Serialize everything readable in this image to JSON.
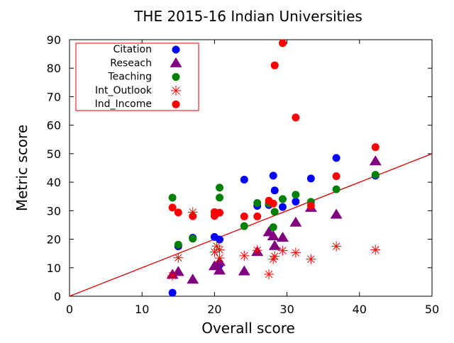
{
  "chart_data": {
    "type": "scatter",
    "title": "THE 2015-16 Indian Universities",
    "xlabel": "Overall score",
    "ylabel": "Metric score",
    "xlim": [
      0,
      50
    ],
    "ylim": [
      0,
      90
    ],
    "xticks": [
      0,
      10,
      20,
      30,
      40,
      50
    ],
    "yticks": [
      0,
      10,
      20,
      30,
      40,
      50,
      60,
      70,
      80,
      90
    ],
    "grid": false,
    "legend_position": "top-left",
    "series": [
      {
        "name": "Citation",
        "marker": "circle",
        "color": "#0000ff",
        "points": [
          [
            14.2,
            1.2
          ],
          [
            15.0,
            17.5
          ],
          [
            17.0,
            20.5
          ],
          [
            20.0,
            20.8
          ],
          [
            20.7,
            19.9
          ],
          [
            20.7,
            11.0
          ],
          [
            24.1,
            40.9
          ],
          [
            25.9,
            31.7
          ],
          [
            27.5,
            32.0
          ],
          [
            28.1,
            42.3
          ],
          [
            28.3,
            37.1
          ],
          [
            29.4,
            31.3
          ],
          [
            31.2,
            33.2
          ],
          [
            33.3,
            41.3
          ],
          [
            36.8,
            48.5
          ],
          [
            42.2,
            42.3
          ]
        ]
      },
      {
        "name": "Reseach",
        "marker": "triangle",
        "color": "#800080",
        "points": [
          [
            14.2,
            7.5
          ],
          [
            15.0,
            8.5
          ],
          [
            17.0,
            5.8
          ],
          [
            20.0,
            10.5
          ],
          [
            20.7,
            9.0
          ],
          [
            20.7,
            12.0
          ],
          [
            24.1,
            8.7
          ],
          [
            25.9,
            15.5
          ],
          [
            27.5,
            22.4
          ],
          [
            28.1,
            21.0
          ],
          [
            28.3,
            17.6
          ],
          [
            29.4,
            20.5
          ],
          [
            31.2,
            25.8
          ],
          [
            33.3,
            31.0
          ],
          [
            36.8,
            28.6
          ],
          [
            42.2,
            47.3
          ]
        ]
      },
      {
        "name": "Teaching",
        "marker": "circle",
        "color": "#008000",
        "points": [
          [
            14.2,
            34.6
          ],
          [
            15.0,
            18.1
          ],
          [
            17.0,
            20.2
          ],
          [
            20.0,
            29.5
          ],
          [
            20.7,
            38.1
          ],
          [
            20.7,
            34.6
          ],
          [
            24.1,
            24.6
          ],
          [
            25.9,
            32.7
          ],
          [
            27.5,
            32.5
          ],
          [
            28.1,
            24.2
          ],
          [
            28.3,
            29.6
          ],
          [
            29.4,
            34.1
          ],
          [
            31.2,
            35.6
          ],
          [
            33.3,
            33.1
          ],
          [
            36.8,
            37.5
          ],
          [
            42.2,
            42.6
          ]
        ]
      },
      {
        "name": "Int_Outlook",
        "marker": "asterisk",
        "color": "#ff0000",
        "points": [
          [
            14.2,
            7.2
          ],
          [
            15.0,
            13.5
          ],
          [
            17.0,
            29.5
          ],
          [
            20.0,
            15.5
          ],
          [
            20.3,
            17.6
          ],
          [
            20.7,
            16.3
          ],
          [
            20.7,
            13.4
          ],
          [
            24.1,
            14.2
          ],
          [
            25.9,
            16.1
          ],
          [
            27.5,
            7.7
          ],
          [
            28.1,
            13.0
          ],
          [
            28.3,
            14.0
          ],
          [
            29.4,
            16.0
          ],
          [
            31.2,
            15.3
          ],
          [
            33.3,
            13.0
          ],
          [
            36.8,
            17.5
          ],
          [
            42.2,
            16.3
          ]
        ]
      },
      {
        "name": "Ind_Income",
        "marker": "circle",
        "color": "#ff0000",
        "points": [
          [
            14.2,
            31.1
          ],
          [
            15.0,
            29.4
          ],
          [
            17.0,
            28.1
          ],
          [
            20.0,
            28.2
          ],
          [
            20.0,
            29.5
          ],
          [
            20.7,
            29.3
          ],
          [
            24.1,
            28.0
          ],
          [
            25.9,
            28.0
          ],
          [
            27.5,
            33.5
          ],
          [
            28.1,
            32.5
          ],
          [
            28.3,
            81.0
          ],
          [
            29.4,
            88.8
          ],
          [
            31.2,
            62.7
          ],
          [
            33.3,
            31.8
          ],
          [
            36.8,
            42.1
          ],
          [
            42.2,
            52.3
          ]
        ]
      }
    ],
    "trend_line": {
      "color": "#e00000",
      "points": [
        [
          0,
          0
        ],
        [
          50,
          50
        ]
      ]
    }
  }
}
